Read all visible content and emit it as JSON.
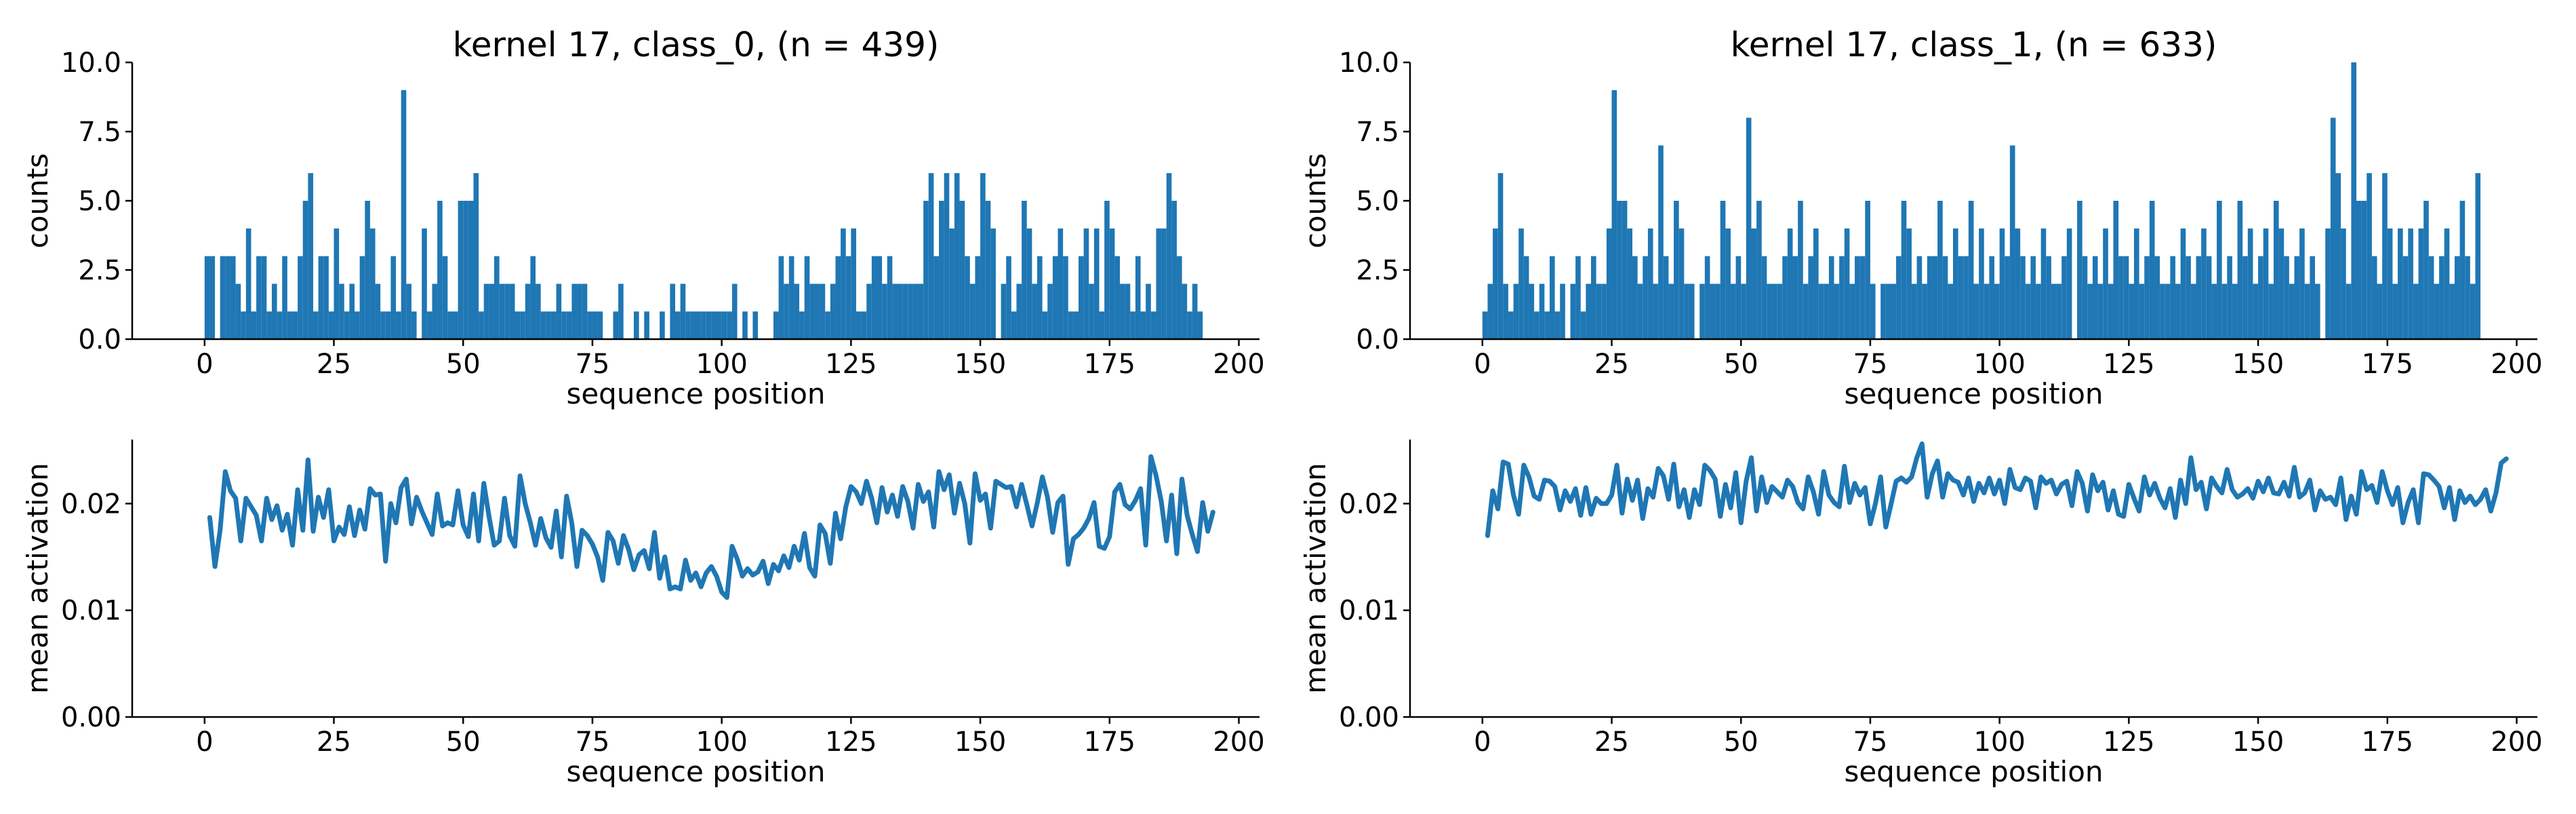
{
  "colors": {
    "series": "#1f77b4",
    "background": "#ffffff"
  },
  "chart_data": [
    {
      "type": "bar",
      "title": "kernel 17, class_0, (n = 439)",
      "xlabel": "sequence position",
      "ylabel": "counts",
      "xlim": [
        -14,
        204
      ],
      "ylim": [
        0,
        10
      ],
      "xticks": [
        "0",
        "25",
        "50",
        "75",
        "100",
        "125",
        "150",
        "175",
        "200"
      ],
      "yticks": [
        "0.0",
        "2.5",
        "5.0",
        "7.5",
        "10.0"
      ],
      "bin_width": 1,
      "x": [
        0,
        1,
        2,
        3,
        4,
        5,
        6,
        7,
        8,
        9,
        10,
        11,
        12,
        13,
        14,
        15,
        16,
        17,
        18,
        19,
        20,
        21,
        22,
        23,
        24,
        25,
        26,
        27,
        28,
        29,
        30,
        31,
        32,
        33,
        34,
        35,
        36,
        37,
        38,
        39,
        40,
        41,
        42,
        43,
        44,
        45,
        46,
        47,
        48,
        49,
        50,
        51,
        52,
        53,
        54,
        55,
        56,
        57,
        58,
        59,
        60,
        61,
        62,
        63,
        64,
        65,
        66,
        67,
        68,
        69,
        70,
        71,
        72,
        73,
        74,
        75,
        76,
        77,
        78,
        79,
        80,
        81,
        82,
        83,
        84,
        85,
        86,
        87,
        88,
        89,
        90,
        91,
        92,
        93,
        94,
        95,
        96,
        97,
        98,
        99,
        100,
        101,
        102,
        103,
        104,
        105,
        106,
        107,
        108,
        109,
        110,
        111,
        112,
        113,
        114,
        115,
        116,
        117,
        118,
        119,
        120,
        121,
        122,
        123,
        124,
        125,
        126,
        127,
        128,
        129,
        130,
        131,
        132,
        133,
        134,
        135,
        136,
        137,
        138,
        139,
        140,
        141,
        142,
        143,
        144,
        145,
        146,
        147,
        148,
        149,
        150,
        151,
        152,
        153,
        154,
        155,
        156,
        157,
        158,
        159,
        160,
        161,
        162,
        163,
        164,
        165,
        166,
        167,
        168,
        169,
        170,
        171,
        172,
        173,
        174,
        175,
        176,
        177,
        178,
        179,
        180,
        181,
        182,
        183,
        184,
        185,
        186,
        187,
        188,
        189,
        190,
        191,
        192
      ],
      "values": [
        3,
        3,
        0,
        3,
        3,
        3,
        2,
        1,
        4,
        1,
        3,
        3,
        1,
        2,
        1,
        3,
        1,
        1,
        3,
        5,
        6,
        1,
        3,
        3,
        1,
        4,
        2,
        1,
        2,
        1,
        3,
        5,
        4,
        2,
        1,
        1,
        3,
        1,
        9,
        2,
        1,
        0,
        4,
        1,
        2,
        5,
        3,
        1,
        1,
        5,
        5,
        5,
        6,
        1,
        2,
        2,
        3,
        2,
        2,
        2,
        1,
        1,
        2,
        3,
        2,
        1,
        1,
        1,
        2,
        1,
        1,
        2,
        2,
        2,
        1,
        1,
        1,
        0,
        0,
        1,
        2,
        0,
        0,
        1,
        0,
        1,
        0,
        0,
        1,
        0,
        2,
        1,
        2,
        1,
        1,
        1,
        1,
        1,
        1,
        1,
        1,
        1,
        2,
        0,
        1,
        0,
        1,
        0,
        0,
        0,
        1,
        3,
        2,
        3,
        2,
        1,
        3,
        2,
        2,
        2,
        1,
        2,
        3,
        4,
        3,
        4,
        1,
        1,
        2,
        3,
        3,
        2,
        3,
        2,
        2,
        2,
        2,
        2,
        2,
        5,
        6,
        3,
        5,
        6,
        4,
        6,
        5,
        3,
        2,
        3,
        6,
        5,
        4,
        0,
        2,
        3,
        1,
        2,
        5,
        4,
        2,
        3,
        1,
        2,
        3,
        4,
        3,
        1,
        1,
        3,
        4,
        2,
        4,
        1,
        5,
        4,
        3,
        2,
        2,
        1,
        3,
        1,
        2,
        1,
        4,
        4,
        6,
        5,
        3,
        2,
        1,
        2,
        1
      ],
      "type_mark": "histogram"
    },
    {
      "type": "bar",
      "title": "kernel 17, class_1, (n = 633)",
      "xlabel": "sequence position",
      "ylabel": "counts",
      "xlim": [
        -14,
        204
      ],
      "ylim": [
        0,
        10
      ],
      "xticks": [
        "0",
        "25",
        "50",
        "75",
        "100",
        "125",
        "150",
        "175",
        "200"
      ],
      "yticks": [
        "0.0",
        "2.5",
        "5.0",
        "7.5",
        "10.0"
      ],
      "bin_width": 1,
      "x": [
        0,
        1,
        2,
        3,
        4,
        5,
        6,
        7,
        8,
        9,
        10,
        11,
        12,
        13,
        14,
        15,
        16,
        17,
        18,
        19,
        20,
        21,
        22,
        23,
        24,
        25,
        26,
        27,
        28,
        29,
        30,
        31,
        32,
        33,
        34,
        35,
        36,
        37,
        38,
        39,
        40,
        41,
        42,
        43,
        44,
        45,
        46,
        47,
        48,
        49,
        50,
        51,
        52,
        53,
        54,
        55,
        56,
        57,
        58,
        59,
        60,
        61,
        62,
        63,
        64,
        65,
        66,
        67,
        68,
        69,
        70,
        71,
        72,
        73,
        74,
        75,
        76,
        77,
        78,
        79,
        80,
        81,
        82,
        83,
        84,
        85,
        86,
        87,
        88,
        89,
        90,
        91,
        92,
        93,
        94,
        95,
        96,
        97,
        98,
        99,
        100,
        101,
        102,
        103,
        104,
        105,
        106,
        107,
        108,
        109,
        110,
        111,
        112,
        113,
        114,
        115,
        116,
        117,
        118,
        119,
        120,
        121,
        122,
        123,
        124,
        125,
        126,
        127,
        128,
        129,
        130,
        131,
        132,
        133,
        134,
        135,
        136,
        137,
        138,
        139,
        140,
        141,
        142,
        143,
        144,
        145,
        146,
        147,
        148,
        149,
        150,
        151,
        152,
        153,
        154,
        155,
        156,
        157,
        158,
        159,
        160,
        161,
        162,
        163,
        164,
        165,
        166,
        167,
        168,
        169,
        170,
        171,
        172,
        173,
        174,
        175,
        176,
        177,
        178,
        179,
        180,
        181,
        182,
        183,
        184,
        185,
        186,
        187,
        188,
        189,
        190,
        191,
        192
      ],
      "values": [
        1,
        2,
        4,
        6,
        2,
        1,
        2,
        4,
        3,
        2,
        1,
        2,
        1,
        3,
        1,
        2,
        0,
        2,
        3,
        1,
        2,
        3,
        2,
        2,
        4,
        9,
        5,
        5,
        4,
        3,
        2,
        3,
        4,
        2,
        7,
        3,
        2,
        5,
        4,
        2,
        2,
        0,
        2,
        3,
        2,
        2,
        5,
        4,
        2,
        3,
        2,
        8,
        4,
        5,
        3,
        2,
        2,
        2,
        3,
        4,
        3,
        5,
        2,
        3,
        4,
        2,
        2,
        3,
        2,
        3,
        4,
        2,
        3,
        3,
        5,
        2,
        0,
        2,
        2,
        2,
        3,
        5,
        4,
        2,
        3,
        2,
        3,
        3,
        5,
        3,
        2,
        4,
        3,
        3,
        5,
        2,
        4,
        2,
        3,
        2,
        4,
        3,
        7,
        4,
        3,
        2,
        3,
        2,
        4,
        3,
        2,
        2,
        3,
        4,
        0,
        5,
        3,
        2,
        3,
        2,
        4,
        2,
        5,
        3,
        3,
        2,
        4,
        2,
        3,
        5,
        3,
        2,
        2,
        3,
        2,
        4,
        3,
        2,
        3,
        4,
        3,
        2,
        5,
        2,
        3,
        2,
        5,
        3,
        4,
        2,
        3,
        4,
        2,
        5,
        4,
        3,
        2,
        3,
        4,
        2,
        3,
        2,
        0,
        4,
        8,
        6,
        4,
        2,
        10,
        5,
        5,
        6,
        3,
        2,
        6,
        4,
        2,
        4,
        3,
        4,
        2,
        4,
        5,
        3,
        2,
        3,
        4,
        2,
        3,
        5,
        3,
        2,
        6
      ],
      "type_mark": "histogram"
    },
    {
      "type": "line",
      "title": "",
      "xlabel": "sequence position",
      "ylabel": "mean activation",
      "xlim": [
        -14,
        204
      ],
      "ylim": [
        0,
        0.026
      ],
      "xticks": [
        "0",
        "25",
        "50",
        "75",
        "100",
        "125",
        "150",
        "175",
        "200"
      ],
      "yticks": [
        "0.00",
        "0.01",
        "0.02"
      ],
      "x_start": 1,
      "values": [
        0.0187,
        0.0141,
        0.0175,
        0.023,
        0.0212,
        0.0205,
        0.0165,
        0.0205,
        0.0197,
        0.0189,
        0.0165,
        0.0205,
        0.0185,
        0.0198,
        0.0175,
        0.019,
        0.0161,
        0.0213,
        0.0175,
        0.0241,
        0.0174,
        0.0206,
        0.0187,
        0.0213,
        0.0165,
        0.0178,
        0.0171,
        0.0197,
        0.017,
        0.0194,
        0.0176,
        0.0214,
        0.0208,
        0.0209,
        0.0146,
        0.02,
        0.0182,
        0.0215,
        0.0223,
        0.0181,
        0.0206,
        0.0193,
        0.0182,
        0.0171,
        0.0209,
        0.0179,
        0.0182,
        0.018,
        0.0212,
        0.018,
        0.0169,
        0.0209,
        0.0165,
        0.0219,
        0.0188,
        0.0161,
        0.0165,
        0.0205,
        0.017,
        0.016,
        0.0226,
        0.02,
        0.0182,
        0.0161,
        0.0186,
        0.0168,
        0.0159,
        0.0193,
        0.015,
        0.0207,
        0.0182,
        0.0141,
        0.0175,
        0.017,
        0.0162,
        0.015,
        0.0128,
        0.0173,
        0.0165,
        0.0144,
        0.017,
        0.0157,
        0.0138,
        0.0152,
        0.0156,
        0.0139,
        0.0173,
        0.013,
        0.015,
        0.012,
        0.0122,
        0.012,
        0.0147,
        0.0128,
        0.0135,
        0.0122,
        0.0135,
        0.0141,
        0.0132,
        0.0117,
        0.0112,
        0.016,
        0.0148,
        0.0132,
        0.0139,
        0.0133,
        0.0136,
        0.0146,
        0.0125,
        0.0143,
        0.0137,
        0.0151,
        0.014,
        0.016,
        0.0147,
        0.0172,
        0.014,
        0.0132,
        0.018,
        0.0172,
        0.0144,
        0.0191,
        0.0167,
        0.0197,
        0.0216,
        0.0211,
        0.02,
        0.0221,
        0.0205,
        0.0182,
        0.0215,
        0.0192,
        0.0208,
        0.0188,
        0.0216,
        0.0202,
        0.0177,
        0.0218,
        0.0202,
        0.0211,
        0.0178,
        0.023,
        0.0213,
        0.0227,
        0.0191,
        0.0219,
        0.02,
        0.0163,
        0.0228,
        0.0203,
        0.0209,
        0.0177,
        0.0221,
        0.0218,
        0.0215,
        0.0216,
        0.0197,
        0.0218,
        0.0199,
        0.0179,
        0.02,
        0.0225,
        0.0206,
        0.0173,
        0.0201,
        0.0207,
        0.0143,
        0.0167,
        0.0171,
        0.0177,
        0.0186,
        0.0201,
        0.016,
        0.0158,
        0.0169,
        0.0211,
        0.0218,
        0.0199,
        0.0195,
        0.0203,
        0.0214,
        0.0161,
        0.0244,
        0.0226,
        0.0202,
        0.0165,
        0.0208,
        0.0153,
        0.0223,
        0.0189,
        0.0171,
        0.0155,
        0.0201,
        0.0174,
        0.0192
      ]
    },
    {
      "type": "line",
      "title": "",
      "xlabel": "sequence position",
      "ylabel": "mean activation",
      "xlim": [
        -14,
        204
      ],
      "ylim": [
        0,
        0.026
      ],
      "xticks": [
        "0",
        "25",
        "50",
        "75",
        "100",
        "125",
        "150",
        "175",
        "200"
      ],
      "yticks": [
        "0.00",
        "0.01",
        "0.02"
      ],
      "x_start": 1,
      "values": [
        0.017,
        0.0212,
        0.0195,
        0.0239,
        0.0237,
        0.0208,
        0.019,
        0.0236,
        0.0225,
        0.0207,
        0.0204,
        0.0222,
        0.0221,
        0.0216,
        0.0194,
        0.0212,
        0.0202,
        0.0214,
        0.0189,
        0.0215,
        0.019,
        0.0205,
        0.02,
        0.02,
        0.0208,
        0.0236,
        0.0191,
        0.0223,
        0.0203,
        0.0222,
        0.0186,
        0.0214,
        0.0206,
        0.0233,
        0.0226,
        0.0204,
        0.0237,
        0.0197,
        0.0213,
        0.0187,
        0.0213,
        0.0199,
        0.0236,
        0.0231,
        0.0223,
        0.0188,
        0.0218,
        0.0196,
        0.0229,
        0.0182,
        0.0221,
        0.0243,
        0.0193,
        0.0225,
        0.0201,
        0.0216,
        0.0211,
        0.0206,
        0.0222,
        0.0216,
        0.0201,
        0.0195,
        0.0225,
        0.0211,
        0.019,
        0.023,
        0.0208,
        0.0201,
        0.0197,
        0.0235,
        0.0201,
        0.0219,
        0.0208,
        0.0215,
        0.0181,
        0.02,
        0.0225,
        0.0178,
        0.0199,
        0.0221,
        0.0224,
        0.022,
        0.0225,
        0.0243,
        0.0256,
        0.0206,
        0.0228,
        0.024,
        0.0206,
        0.0228,
        0.0222,
        0.022,
        0.0208,
        0.0224,
        0.0202,
        0.0219,
        0.021,
        0.0224,
        0.0209,
        0.0222,
        0.02,
        0.0232,
        0.0215,
        0.0213,
        0.0224,
        0.0221,
        0.0196,
        0.0225,
        0.0219,
        0.0222,
        0.0209,
        0.0218,
        0.0221,
        0.0198,
        0.023,
        0.0219,
        0.0193,
        0.0227,
        0.0212,
        0.022,
        0.0194,
        0.0212,
        0.019,
        0.0188,
        0.0218,
        0.0205,
        0.0193,
        0.0225,
        0.0208,
        0.0219,
        0.0205,
        0.0196,
        0.0214,
        0.0187,
        0.0222,
        0.02,
        0.0243,
        0.0213,
        0.022,
        0.0195,
        0.0224,
        0.0216,
        0.021,
        0.0232,
        0.0213,
        0.0206,
        0.0209,
        0.0214,
        0.0205,
        0.0221,
        0.0211,
        0.0224,
        0.021,
        0.0209,
        0.022,
        0.0207,
        0.0234,
        0.0206,
        0.021,
        0.0222,
        0.0194,
        0.0212,
        0.0204,
        0.0206,
        0.0199,
        0.0224,
        0.0185,
        0.0207,
        0.019,
        0.023,
        0.0213,
        0.0217,
        0.0201,
        0.023,
        0.0212,
        0.0199,
        0.0215,
        0.0182,
        0.0201,
        0.0213,
        0.0182,
        0.0228,
        0.0227,
        0.0222,
        0.0216,
        0.0196,
        0.0215,
        0.0185,
        0.0212,
        0.0201,
        0.0207,
        0.0199,
        0.0204,
        0.0213,
        0.0193,
        0.021,
        0.0238,
        0.0242
      ]
    }
  ]
}
